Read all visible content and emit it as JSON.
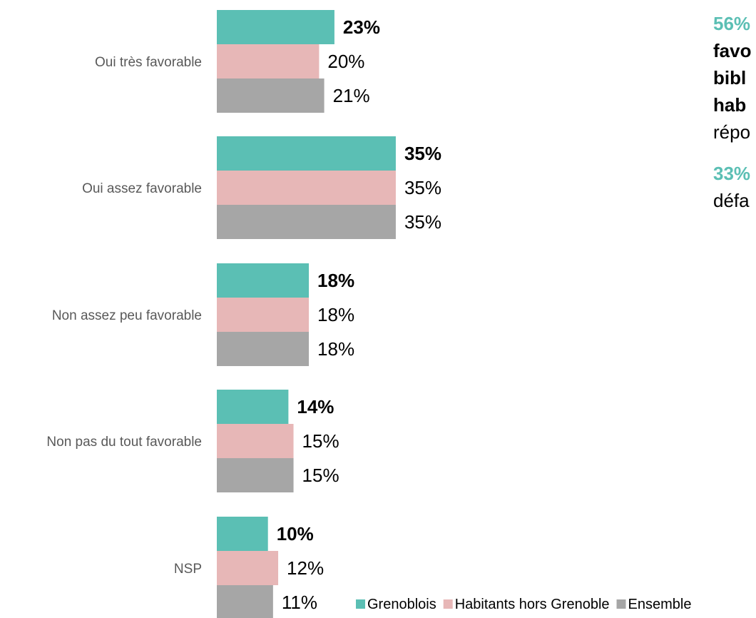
{
  "chart_data": {
    "type": "bar",
    "orientation": "horizontal",
    "categories": [
      "Oui très favorable",
      "Oui assez favorable",
      "Non assez peu favorable",
      "Non pas du tout favorable",
      "NSP"
    ],
    "series": [
      {
        "name": "Grenoblois",
        "color": "#5bbfb4",
        "values": [
          23,
          35,
          18,
          14,
          10
        ],
        "labels": [
          "23%",
          "35%",
          "18%",
          "14%",
          "10%"
        ],
        "label_bold": true
      },
      {
        "name": "Habitants hors Grenoble",
        "color": "#e7b7b7",
        "values": [
          20,
          35,
          18,
          15,
          12
        ],
        "labels": [
          "20%",
          "35%",
          "18%",
          "15%",
          "12%"
        ],
        "label_bold": false
      },
      {
        "name": "Ensemble",
        "color": "#a6a6a6",
        "values": [
          21,
          35,
          18,
          15,
          11
        ],
        "labels": [
          "21%",
          "35%",
          "18%",
          "15%",
          "11%"
        ],
        "label_bold": false
      }
    ],
    "unit": "%",
    "xlim": [
      0,
      35
    ],
    "grid": false,
    "legend": "bottom"
  },
  "side_text": {
    "line1_highlight": "56%",
    "line2": "favo",
    "line3": "bibl",
    "line4": "hab",
    "line5": "répo",
    "para2_highlight": "33%",
    "para2_line2": "défa"
  }
}
